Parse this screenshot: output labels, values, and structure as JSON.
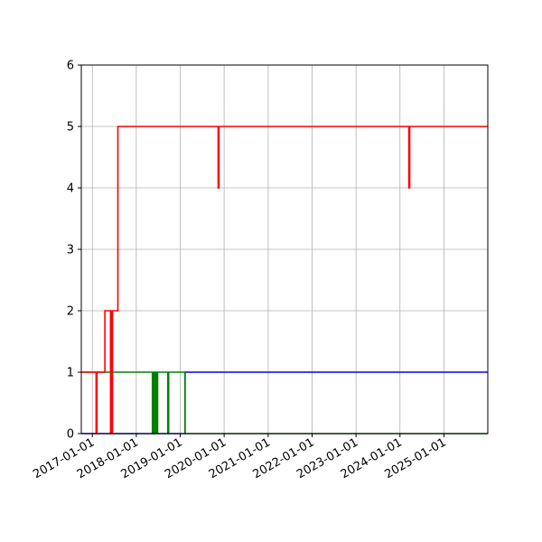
{
  "chart_data": {
    "type": "line",
    "step": true,
    "title": "",
    "xlabel": "",
    "ylabel": "",
    "grid": true,
    "legend": "none",
    "x_axis_type": "date",
    "xlim": [
      "2016-10-01",
      "2025-12-31"
    ],
    "ylim": [
      0,
      6
    ],
    "y_ticks": [
      0,
      1,
      2,
      3,
      4,
      5,
      6
    ],
    "x_ticks": [
      "2017-01-01",
      "2018-01-01",
      "2019-01-01",
      "2020-01-01",
      "2021-01-01",
      "2022-01-01",
      "2023-01-01",
      "2024-01-01",
      "2025-01-01"
    ],
    "series": [
      {
        "color": "#0000ff",
        "points": [
          [
            "2016-10-01",
            0
          ],
          [
            "2019-02-10",
            0
          ],
          [
            "2019-02-10",
            1
          ],
          [
            "2025-12-31",
            1
          ]
        ]
      },
      {
        "color": "#008000",
        "points": [
          [
            "2016-10-01",
            1
          ],
          [
            "2018-05-15",
            1
          ],
          [
            "2018-05-15",
            0
          ],
          [
            "2018-05-20",
            0
          ],
          [
            "2018-05-20",
            1
          ],
          [
            "2018-05-26",
            1
          ],
          [
            "2018-05-26",
            0
          ],
          [
            "2018-06-01",
            0
          ],
          [
            "2018-06-01",
            1
          ],
          [
            "2018-06-08",
            1
          ],
          [
            "2018-06-08",
            0
          ],
          [
            "2018-06-14",
            0
          ],
          [
            "2018-06-14",
            1
          ],
          [
            "2018-06-20",
            1
          ],
          [
            "2018-06-20",
            0
          ],
          [
            "2018-06-27",
            0
          ],
          [
            "2018-06-27",
            1
          ],
          [
            "2018-09-20",
            1
          ],
          [
            "2018-09-20",
            0
          ],
          [
            "2018-09-27",
            0
          ],
          [
            "2018-09-27",
            1
          ],
          [
            "2019-02-10",
            1
          ],
          [
            "2019-02-10",
            0
          ],
          [
            "2025-12-31",
            0
          ]
        ]
      },
      {
        "color": "#ff0000",
        "points": [
          [
            "2016-10-01",
            1
          ],
          [
            "2017-02-01",
            1
          ],
          [
            "2017-02-01",
            0
          ],
          [
            "2017-02-08",
            0
          ],
          [
            "2017-02-08",
            1
          ],
          [
            "2017-04-15",
            1
          ],
          [
            "2017-04-15",
            2
          ],
          [
            "2017-06-01",
            2
          ],
          [
            "2017-06-01",
            0
          ],
          [
            "2017-06-06",
            0
          ],
          [
            "2017-06-06",
            2
          ],
          [
            "2017-06-12",
            2
          ],
          [
            "2017-06-12",
            0
          ],
          [
            "2017-06-17",
            0
          ],
          [
            "2017-06-17",
            2
          ],
          [
            "2017-08-01",
            2
          ],
          [
            "2017-08-01",
            5
          ],
          [
            "2019-11-12",
            5
          ],
          [
            "2019-11-12",
            4
          ],
          [
            "2019-11-19",
            4
          ],
          [
            "2019-11-19",
            5
          ],
          [
            "2024-03-15",
            5
          ],
          [
            "2024-03-15",
            4
          ],
          [
            "2024-03-22",
            4
          ],
          [
            "2024-03-22",
            5
          ],
          [
            "2025-12-31",
            5
          ]
        ]
      }
    ]
  }
}
